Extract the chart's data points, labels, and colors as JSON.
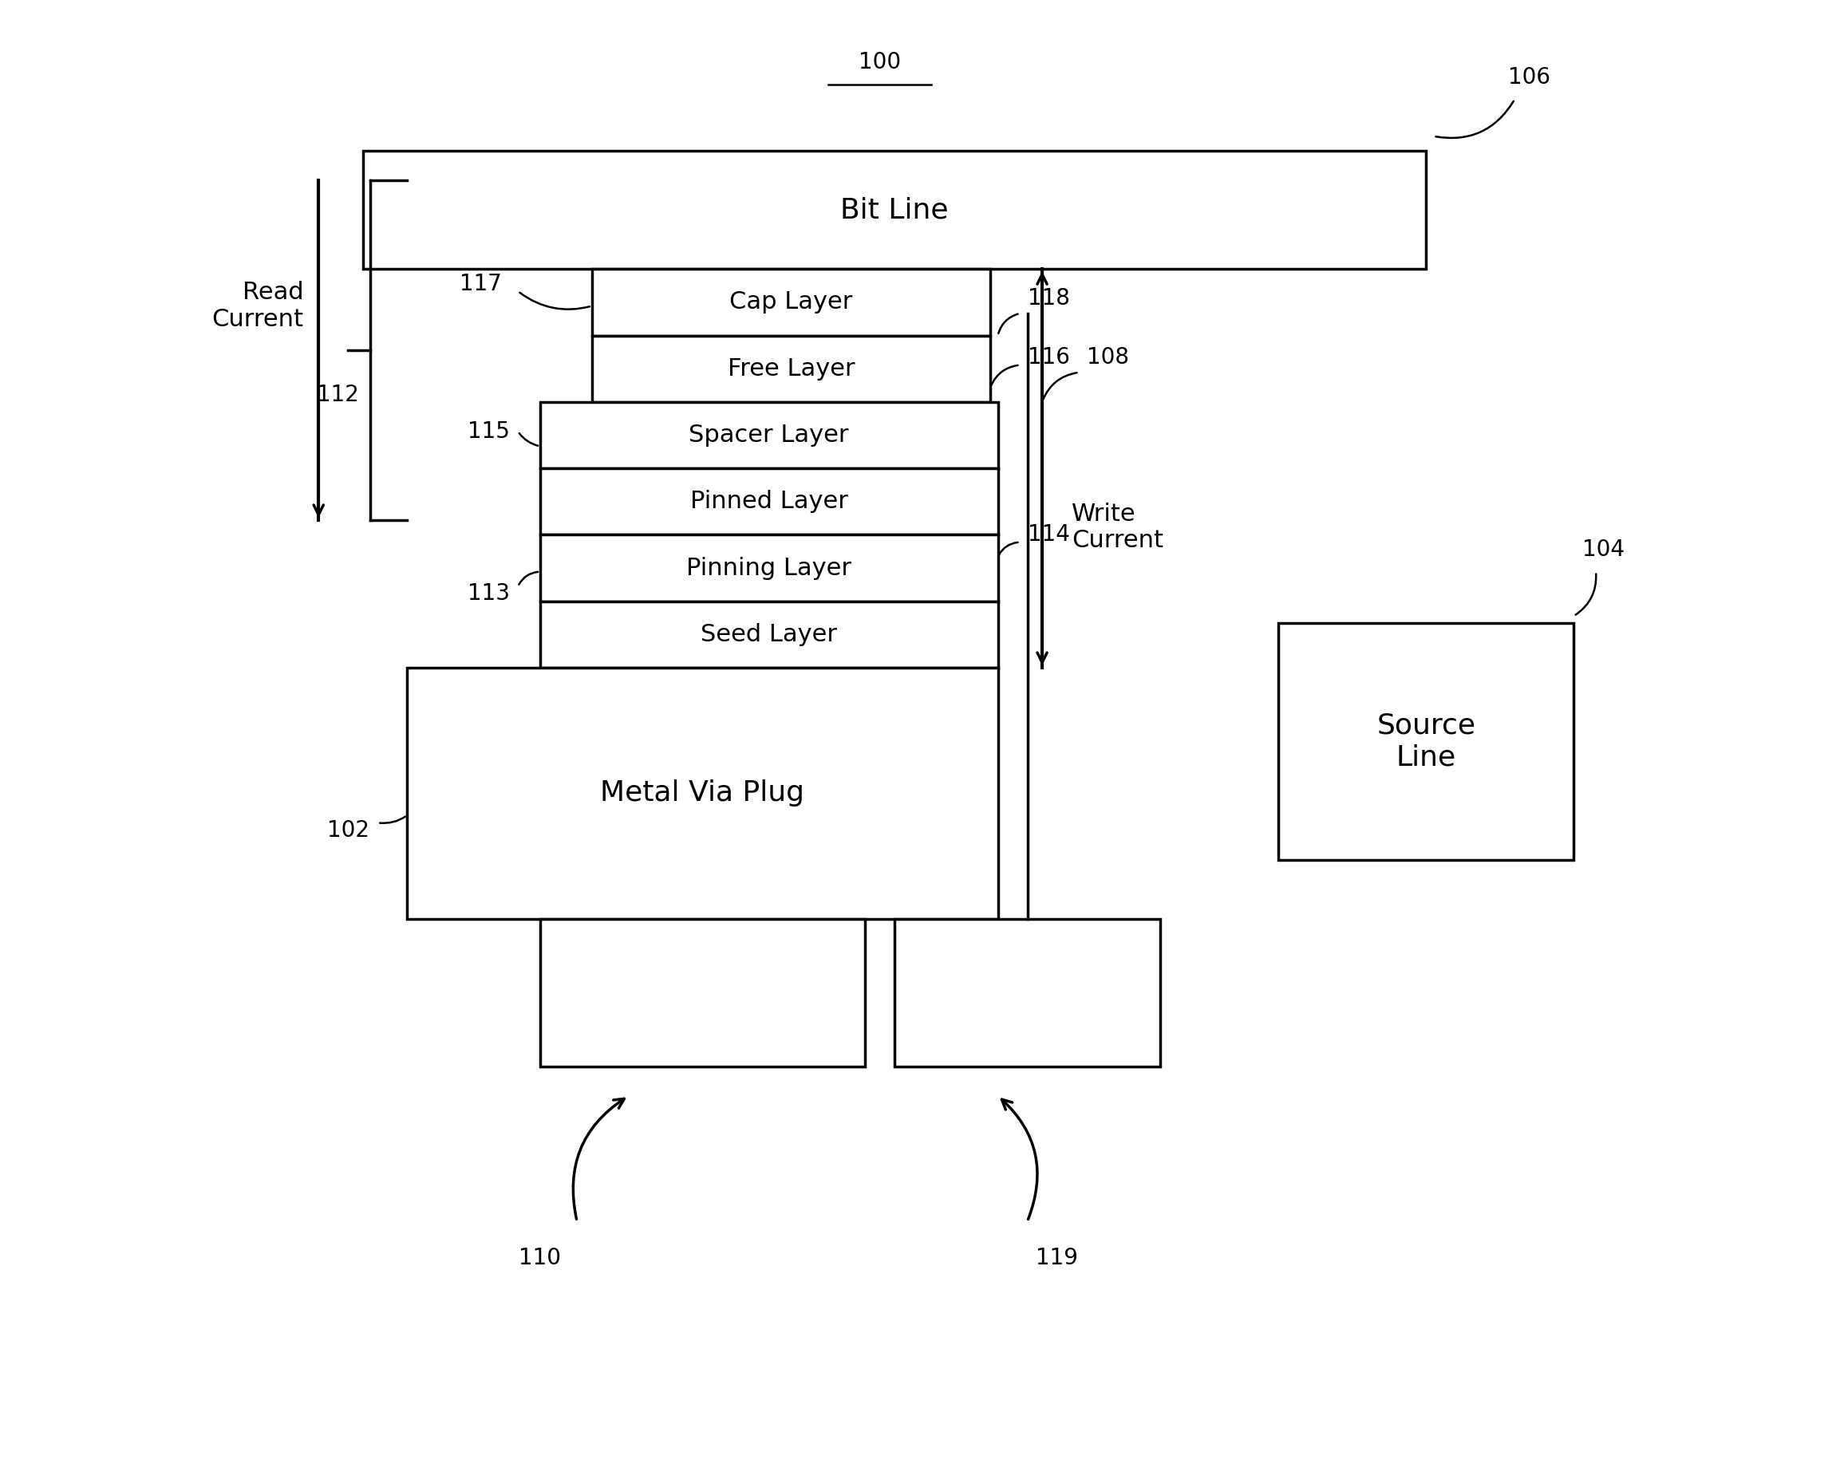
{
  "fig_width": 23.16,
  "fig_height": 18.59,
  "bg_color": "#ffffff",
  "line_color": "#000000",
  "lw": 2.5,
  "lw_thin": 1.8,
  "fs_large": 26,
  "fs_med": 22,
  "fs_small": 19,
  "fs_label": 20,
  "label_100": "100",
  "label_106": "106",
  "label_104": "104",
  "label_102": "102",
  "label_108": "108",
  "label_110": "110",
  "label_112": "112",
  "label_113": "113",
  "label_114": "114",
  "label_115": "115",
  "label_116": "116",
  "label_117": "117",
  "label_118": "118",
  "label_119": "119",
  "bit_line_text": "Bit Line",
  "metal_via_text": "Metal Via Plug",
  "source_line_text": "Source\nLine",
  "cap_layer_text": "Cap Layer",
  "free_layer_text": "Free Layer",
  "spacer_layer_text": "Spacer Layer",
  "pinned_layer_text": "Pinned Layer",
  "pinning_layer_text": "Pinning Layer",
  "seed_layer_text": "Seed Layer",
  "read_current_text": "Read\nCurrent",
  "write_current_text": "Write\nCurrent"
}
